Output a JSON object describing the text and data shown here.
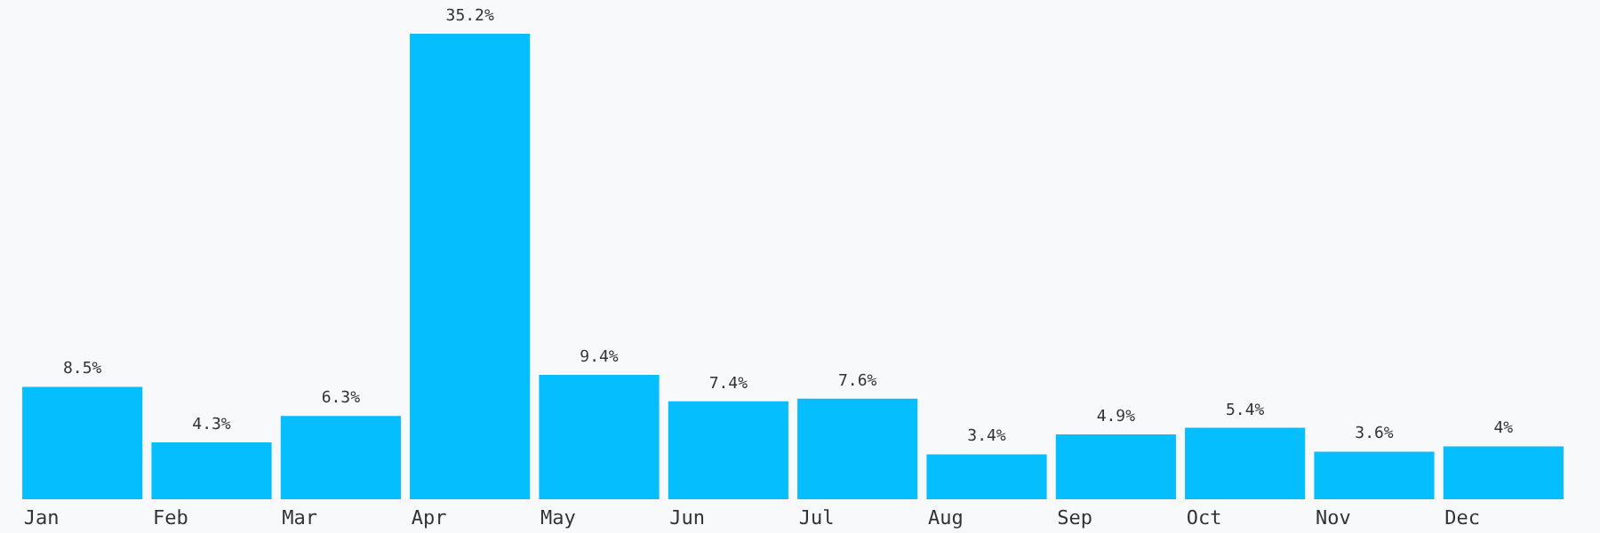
{
  "chart_data": {
    "type": "bar",
    "categories": [
      "Jan",
      "Feb",
      "Mar",
      "Apr",
      "May",
      "Jun",
      "Jul",
      "Aug",
      "Sep",
      "Oct",
      "Nov",
      "Dec"
    ],
    "values": [
      8.5,
      4.3,
      6.3,
      35.2,
      9.4,
      7.4,
      7.6,
      3.4,
      4.9,
      5.4,
      3.6,
      4
    ],
    "value_labels": [
      "8.5%",
      "4.3%",
      "6.3%",
      "35.2%",
      "9.4%",
      "7.4%",
      "7.6%",
      "3.4%",
      "4.9%",
      "5.4%",
      "3.6%",
      "4%"
    ],
    "color": "#04befe"
  }
}
